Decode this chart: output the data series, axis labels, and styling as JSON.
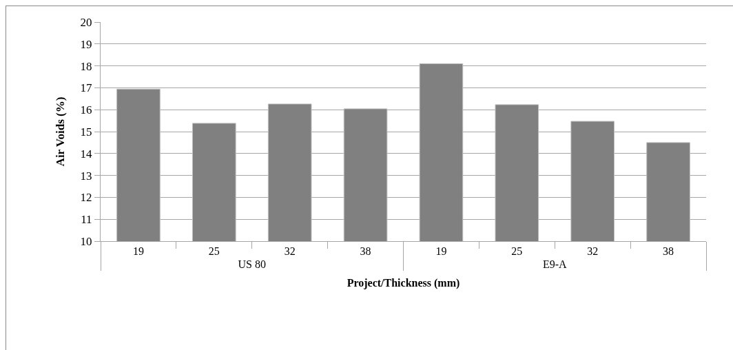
{
  "chart_data": {
    "type": "bar",
    "xlabel": "Project/Thickness (mm)",
    "ylabel": "Air Voids (%)",
    "categories": [
      "19",
      "25",
      "32",
      "38",
      "19",
      "25",
      "32",
      "38"
    ],
    "values": [
      16.94,
      15.38,
      16.26,
      16.04,
      18.1,
      16.23,
      15.47,
      14.5
    ],
    "color": "#808080",
    "ylim": [
      10,
      20
    ],
    "yticks": [
      10,
      11,
      12,
      13,
      14,
      15,
      16,
      17,
      18,
      19,
      20
    ],
    "grid": "y",
    "annotations": [
      "US 80",
      "E9-A"
    ]
  }
}
